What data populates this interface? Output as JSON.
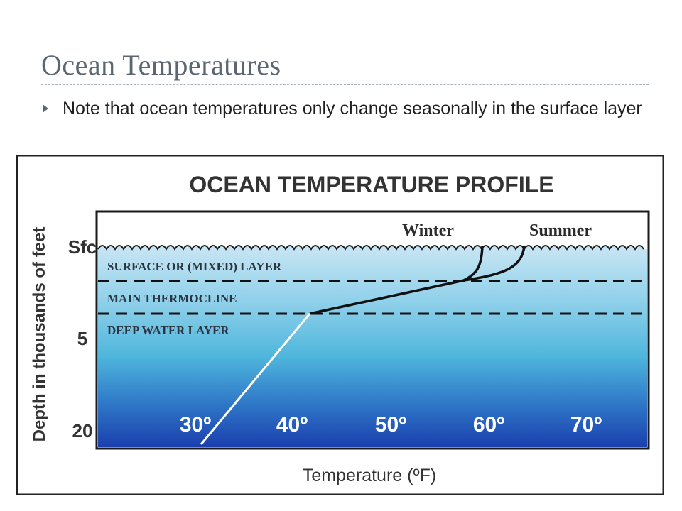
{
  "slide": {
    "title": "Ocean Temperatures",
    "bullet": "Note that ocean temperatures only change seasonally in the surface layer"
  },
  "figure": {
    "title": "OCEAN TEMPERATURE PROFILE",
    "y_axis_label": "Depth in thousands of feet",
    "x_axis_label": "Temperature (ºF)",
    "depth_labels": [
      "Sfc",
      "5",
      "20"
    ],
    "temperature_labels": [
      "30º",
      "40º",
      "50º",
      "60º",
      "70º"
    ],
    "layers": [
      "SURFACE  OR (MIXED) LAYER",
      "MAIN THERMOCLINE",
      "DEEP WATER LAYER"
    ],
    "curve_labels": [
      "Winter",
      "Summer"
    ],
    "colors": {
      "surface_water": "#b8dcef",
      "mid_water": "#55c2e0",
      "deep_water": "#1e49b8",
      "frame": "#222222",
      "title_text": "#333333",
      "temperature_text": "#ffffff"
    }
  }
}
